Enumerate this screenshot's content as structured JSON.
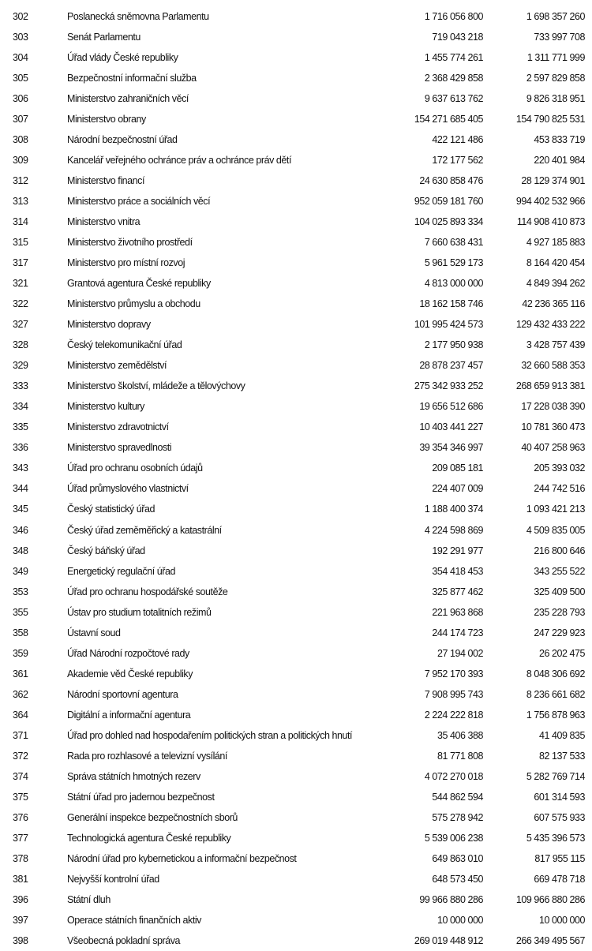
{
  "rows": [
    {
      "code": "302",
      "name": "Poslanecká sněmovna Parlamentu",
      "v1": "1 716 056 800",
      "v2": "1 698 357 260"
    },
    {
      "code": "303",
      "name": "Senát Parlamentu",
      "v1": "719 043 218",
      "v2": "733 997 708"
    },
    {
      "code": "304",
      "name": "Úřad vlády České republiky",
      "v1": "1 455 774 261",
      "v2": "1 311 771 999"
    },
    {
      "code": "305",
      "name": "Bezpečnostní informační služba",
      "v1": "2 368 429 858",
      "v2": "2 597 829 858"
    },
    {
      "code": "306",
      "name": "Ministerstvo zahraničních věcí",
      "v1": "9 637 613 762",
      "v2": "9 826 318 951"
    },
    {
      "code": "307",
      "name": "Ministerstvo obrany",
      "v1": "154 271 685 405",
      "v2": "154 790 825 531"
    },
    {
      "code": "308",
      "name": "Národní bezpečnostní úřad",
      "v1": "422 121 486",
      "v2": "453 833 719"
    },
    {
      "code": "309",
      "name": "Kancelář veřejného ochránce práv a ochránce práv dětí",
      "v1": "172 177 562",
      "v2": "220 401 984"
    },
    {
      "code": "312",
      "name": "Ministerstvo financí",
      "v1": "24 630 858 476",
      "v2": "28 129 374 901"
    },
    {
      "code": "313",
      "name": "Ministerstvo práce a sociálních věcí",
      "v1": "952 059 181 760",
      "v2": "994 402 532 966"
    },
    {
      "code": "314",
      "name": "Ministerstvo vnitra",
      "v1": "104 025 893 334",
      "v2": "114 908 410 873"
    },
    {
      "code": "315",
      "name": "Ministerstvo životního prostředí",
      "v1": "7 660 638 431",
      "v2": "4 927 185 883"
    },
    {
      "code": "317",
      "name": "Ministerstvo pro místní rozvoj",
      "v1": "5 961 529 173",
      "v2": "8 164 420 454"
    },
    {
      "code": "321",
      "name": "Grantová agentura České republiky",
      "v1": "4 813 000 000",
      "v2": "4 849 394 262"
    },
    {
      "code": "322",
      "name": "Ministerstvo průmyslu a obchodu",
      "v1": "18 162 158 746",
      "v2": "42 236 365 116"
    },
    {
      "code": "327",
      "name": "Ministerstvo dopravy",
      "v1": "101 995 424 573",
      "v2": "129 432 433 222"
    },
    {
      "code": "328",
      "name": "Český telekomunikační úřad",
      "v1": "2 177 950 938",
      "v2": "3 428 757 439"
    },
    {
      "code": "329",
      "name": "Ministerstvo zemědělství",
      "v1": "28 878 237 457",
      "v2": "32 660 588 353"
    },
    {
      "code": "333",
      "name": "Ministerstvo školství, mládeže a tělovýchovy",
      "v1": "275 342 933 252",
      "v2": "268 659 913 381"
    },
    {
      "code": "334",
      "name": "Ministerstvo kultury",
      "v1": "19 656 512 686",
      "v2": "17 228 038 390"
    },
    {
      "code": "335",
      "name": "Ministerstvo zdravotnictví",
      "v1": "10 403 441 227",
      "v2": "10 781 360 473"
    },
    {
      "code": "336",
      "name": "Ministerstvo spravedlnosti",
      "v1": "39 354 346 997",
      "v2": "40 407 258 963"
    },
    {
      "code": "343",
      "name": "Úřad pro ochranu osobních údajů",
      "v1": "209 085 181",
      "v2": "205 393 032"
    },
    {
      "code": "344",
      "name": "Úřad průmyslového vlastnictví",
      "v1": "224 407 009",
      "v2": "244 742 516"
    },
    {
      "code": "345",
      "name": "Český statistický úřad",
      "v1": "1 188 400 374",
      "v2": "1 093 421 213"
    },
    {
      "code": "346",
      "name": "Český úřad zeměměřický a katastrální",
      "v1": "4 224 598 869",
      "v2": "4 509 835 005"
    },
    {
      "code": "348",
      "name": "Český báňský úřad",
      "v1": "192 291 977",
      "v2": "216 800 646"
    },
    {
      "code": "349",
      "name": "Energetický regulační úřad",
      "v1": "354 418 453",
      "v2": "343 255 522"
    },
    {
      "code": "353",
      "name": "Úřad pro ochranu hospodářské soutěže",
      "v1": "325 877 462",
      "v2": "325 409 500"
    },
    {
      "code": "355",
      "name": "Ústav pro studium totalitních režimů",
      "v1": "221 963 868",
      "v2": "235 228 793"
    },
    {
      "code": "358",
      "name": "Ústavní soud",
      "v1": "244 174 723",
      "v2": "247 229 923"
    },
    {
      "code": "359",
      "name": "Úřad Národní rozpočtové rady",
      "v1": "27 194 002",
      "v2": "26 202 475"
    },
    {
      "code": "361",
      "name": "Akademie věd České republiky",
      "v1": "7 952 170 393",
      "v2": "8 048 306 692"
    },
    {
      "code": "362",
      "name": "Národní sportovní agentura",
      "v1": "7 908 995 743",
      "v2": "8 236 661 682"
    },
    {
      "code": "364",
      "name": "Digitální a informační agentura",
      "v1": "2 224 222 818",
      "v2": "1 756 878 963"
    },
    {
      "code": "371",
      "name": "Úřad pro dohled nad hospodařením politických stran a politických hnutí",
      "v1": "35 406 388",
      "v2": "41 409 835"
    },
    {
      "code": "372",
      "name": "Rada pro rozhlasové a televizní vysílání",
      "v1": "81 771 808",
      "v2": "82 137 533"
    },
    {
      "code": "374",
      "name": "Správa státních hmotných rezerv",
      "v1": "4 072 270 018",
      "v2": "5 282 769 714"
    },
    {
      "code": "375",
      "name": "Státní úřad pro jadernou bezpečnost",
      "v1": "544 862 594",
      "v2": "601 314 593"
    },
    {
      "code": "376",
      "name": "Generální inspekce bezpečnostních sborů",
      "v1": "575 278 942",
      "v2": "607 575 933"
    },
    {
      "code": "377",
      "name": "Technologická agentura České republiky",
      "v1": "5 539 006 238",
      "v2": "5 435 396 573"
    },
    {
      "code": "378",
      "name": "Národní úřad pro kybernetickou a informační bezpečnost",
      "v1": "649 863 010",
      "v2": "817 955 115"
    },
    {
      "code": "381",
      "name": "Nejvyšší kontrolní úřad",
      "v1": "648 573 450",
      "v2": "669 478 718"
    },
    {
      "code": "396",
      "name": "Státní dluh",
      "v1": "99 966 880 286",
      "v2": "109 966 880 286"
    },
    {
      "code": "397",
      "name": "Operace státních finančních aktiv",
      "v1": "10 000 000",
      "v2": "10 000 000"
    },
    {
      "code": "398",
      "name": "Všeobecná pokladní správa",
      "v1": "269 019 448 912",
      "v2": "266 349 495 567"
    }
  ]
}
